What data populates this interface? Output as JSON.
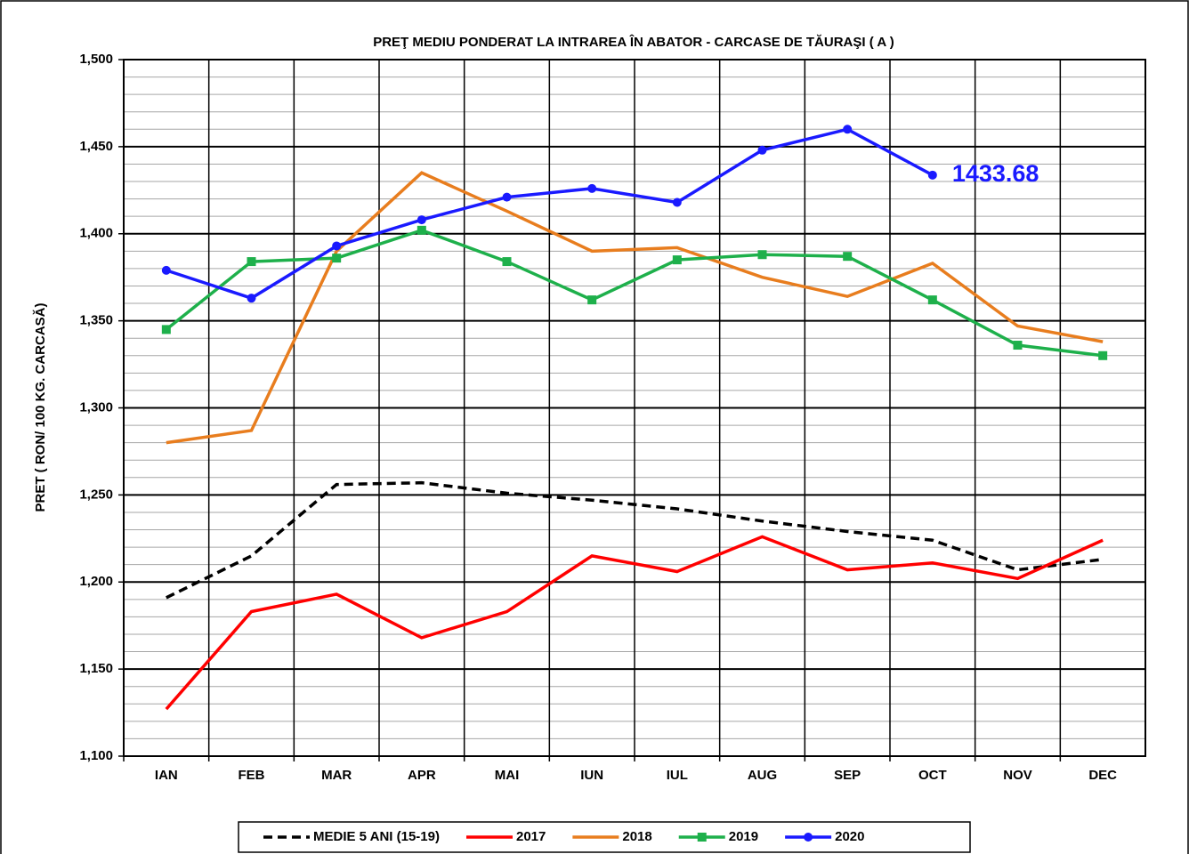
{
  "chart_data": {
    "type": "line",
    "title": "PREŢ MEDIU PONDERAT LA INTRAREA ÎN ABATOR - CARCASE DE TĂURAŞI ( A )",
    "y_label": "PRET ( RON/ 100 KG. CARCASĂ)",
    "categories": [
      "IAN",
      "FEB",
      "MAR",
      "APR",
      "MAI",
      "IUN",
      "IUL",
      "AUG",
      "SEP",
      "OCT",
      "NOV",
      "DEC"
    ],
    "ylim": [
      1100,
      1500
    ],
    "yticks": [
      {
        "value": 1100,
        "label": "1,100"
      },
      {
        "value": 1150,
        "label": "1,150"
      },
      {
        "value": 1200,
        "label": "1,200"
      },
      {
        "value": 1250,
        "label": "1,250"
      },
      {
        "value": 1300,
        "label": "1,300"
      },
      {
        "value": 1350,
        "label": "1,350"
      },
      {
        "value": 1400,
        "label": "1,400"
      },
      {
        "value": 1450,
        "label": "1,450"
      },
      {
        "value": 1500,
        "label": "1,500"
      }
    ],
    "grid": true,
    "minor_grid": 10,
    "legend": "bottom",
    "series": [
      {
        "name": "MEDIE 5 ANI (15-19)",
        "color": "#000000",
        "dash": true,
        "values": [
          1191,
          1215,
          1256,
          1257,
          1251,
          1247,
          1242,
          1235,
          1229,
          1224,
          1207,
          1213
        ]
      },
      {
        "name": "2017",
        "color": "#ff0000",
        "values": [
          1127,
          1183,
          1193,
          1168,
          1183,
          1215,
          1206,
          1226,
          1207,
          1211,
          1202,
          1224
        ]
      },
      {
        "name": "2018",
        "color": "#e87d1e",
        "values": [
          1280,
          1287,
          1390,
          1435,
          1413,
          1390,
          1392,
          1375,
          1364,
          1383,
          1347,
          1338
        ]
      },
      {
        "name": "2019",
        "color": "#1eb04b",
        "marker": "square",
        "values": [
          1345,
          1384,
          1386,
          1402,
          1384,
          1362,
          1385,
          1388,
          1387,
          1362,
          1336,
          1330
        ]
      },
      {
        "name": "2020",
        "color": "#1a1aff",
        "marker": "circle",
        "label_last": true,
        "values": [
          1379,
          1363,
          1393,
          1408,
          1421,
          1426,
          1418,
          1448,
          1460,
          1433.68,
          null,
          null
        ]
      }
    ]
  }
}
